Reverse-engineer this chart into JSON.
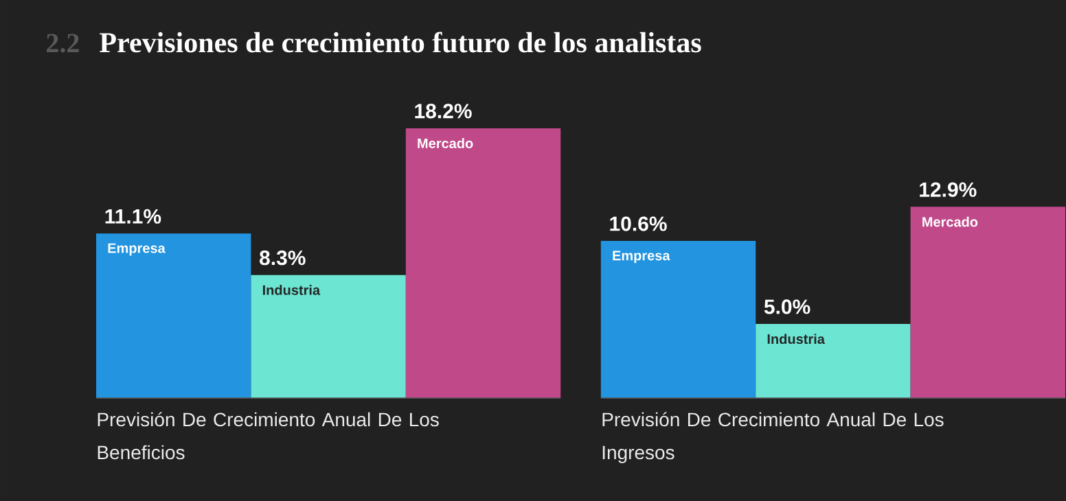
{
  "chart_data": {
    "type": "bar",
    "title": "Previsiones de crecimiento futuro de los analistas",
    "annotations": [
      "2.2"
    ],
    "categories": [
      "Previsión De Crecimiento Anual De Los Beneficios",
      "Previsión De Crecimiento Anual De Los Ingresos"
    ],
    "series": [
      {
        "name": "Empresa",
        "color": "#2394df",
        "values": [
          11.1,
          10.6
        ],
        "value_labels": [
          "11.1%",
          "10.6%"
        ]
      },
      {
        "name": "Industria",
        "color": "#6ce5d2",
        "values": [
          8.3,
          5.0
        ],
        "value_labels": [
          "8.3%",
          "5.0%"
        ]
      },
      {
        "name": "Mercado",
        "color": "#c0498a",
        "values": [
          18.2,
          12.9
        ],
        "value_labels": [
          "18.2%",
          "12.9%"
        ]
      }
    ]
  }
}
